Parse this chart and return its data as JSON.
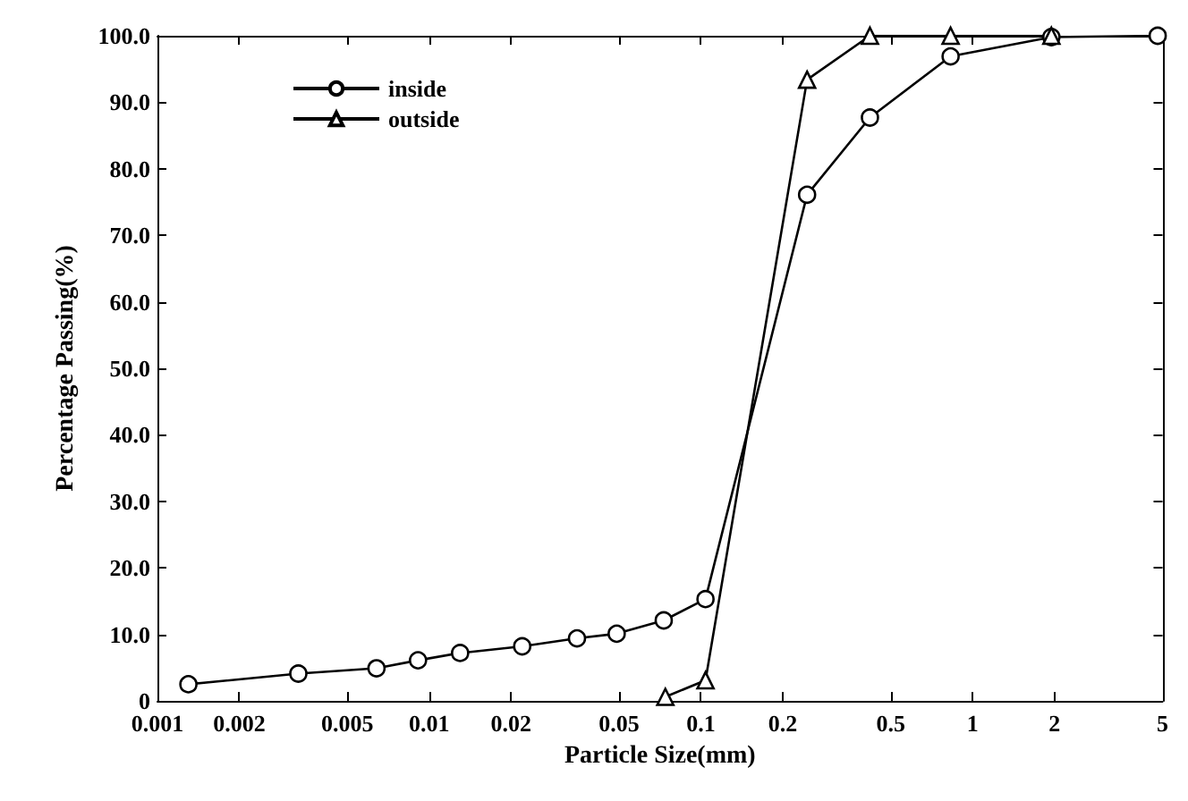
{
  "chart_data": {
    "type": "line",
    "xlabel": "Particle Size(mm)",
    "ylabel": "Percentage Passing(%)",
    "log": "x",
    "xlim": [
      0.001,
      5
    ],
    "xticks": [
      0.001,
      0.002,
      0.005,
      0.01,
      0.02,
      0.05,
      0.1,
      0.2,
      0.5,
      1,
      2,
      5
    ],
    "ylim": [
      0,
      100
    ],
    "yticks": [
      0,
      {
        "value": 10,
        "label": "10.0"
      },
      {
        "value": 20,
        "label": "20.0"
      },
      {
        "value": 30,
        "label": "30.0"
      },
      {
        "value": 40,
        "label": "40.0"
      },
      {
        "value": 50,
        "label": "50.0"
      },
      {
        "value": 60,
        "label": "60.0"
      },
      {
        "value": 70,
        "label": "70.0"
      },
      {
        "value": 80,
        "label": "80.0"
      },
      {
        "value": 90,
        "label": "90.0"
      },
      {
        "value": 100,
        "label": "100.0"
      }
    ],
    "grid": false,
    "legend": "top left",
    "line_style": "solid",
    "series": [
      {
        "name": "inside",
        "color": "#000000",
        "marker": "circle",
        "x": [
          0.0013,
          0.0033,
          0.0064,
          0.0091,
          0.013,
          0.022,
          0.035,
          0.049,
          0.073,
          0.104,
          0.246,
          0.419,
          0.83,
          1.95,
          4.8
        ],
        "values": [
          2.5,
          4.1,
          4.9,
          6.1,
          7.2,
          8.2,
          9.4,
          10.1,
          12.1,
          15.3,
          76.1,
          87.7,
          96.9,
          99.8,
          100
        ]
      },
      {
        "name": "outside",
        "color": "#000000",
        "marker": "triangle",
        "x": [
          0.074,
          0.104,
          0.246,
          0.419,
          0.83,
          1.95
        ],
        "values": [
          0.6,
          3.1,
          93.4,
          100,
          100,
          100
        ]
      }
    ]
  }
}
